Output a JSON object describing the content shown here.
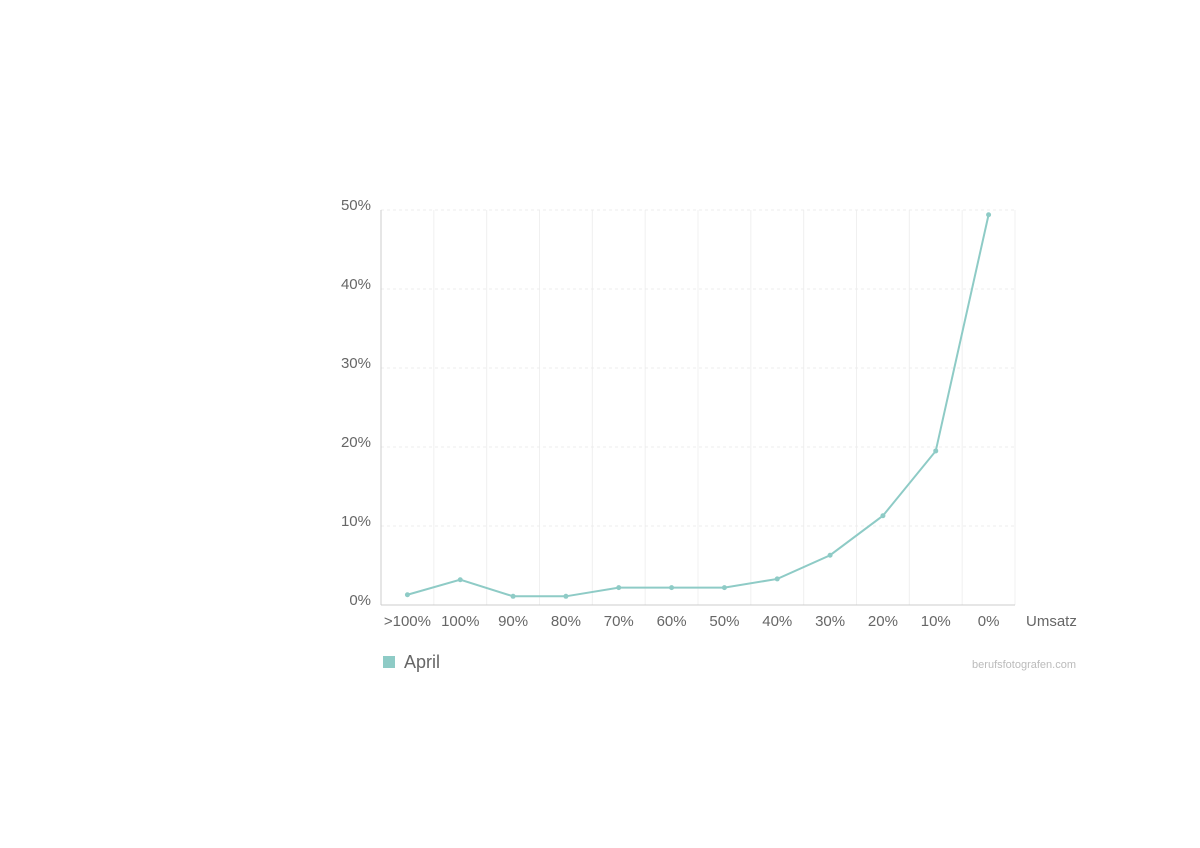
{
  "chart_data": {
    "type": "line",
    "categories": [
      ">100%",
      "100%",
      "90%",
      "80%",
      "70%",
      "60%",
      "50%",
      "40%",
      "30%",
      "20%",
      "10%",
      "0%"
    ],
    "x_label": "Umsatz",
    "series": [
      {
        "name": "April",
        "color": "#8ecbc6",
        "values": [
          1.3,
          3.2,
          1.1,
          1.1,
          2.2,
          2.2,
          2.2,
          3.3,
          6.3,
          11.3,
          19.5,
          49.4
        ]
      }
    ],
    "ylim": [
      0,
      50
    ],
    "yticks": [
      {
        "value": 0,
        "label": "0%"
      },
      {
        "value": 10,
        "label": "10%"
      },
      {
        "value": 20,
        "label": "20%"
      },
      {
        "value": 30,
        "label": "30%"
      },
      {
        "value": 40,
        "label": "40%"
      },
      {
        "value": 50,
        "label": "50%"
      }
    ],
    "grid": true,
    "source": "berufsfotografen.com"
  }
}
